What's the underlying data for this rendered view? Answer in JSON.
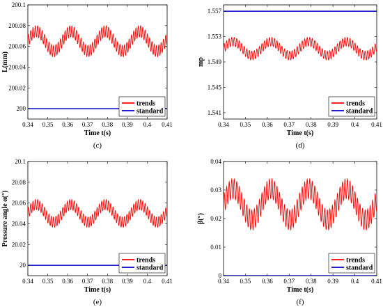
{
  "colors": {
    "trends": "#ff0000",
    "standard": "#0000cc",
    "axis": "#000000"
  },
  "chart_data": [
    {
      "id": "c",
      "type": "line",
      "caption": "(c)",
      "xlabel": "Time t(s)",
      "ylabel": "L(mm)",
      "xlim": [
        0.34,
        0.41
      ],
      "ylim": [
        199.99,
        200.1
      ],
      "xticks": [
        "0.34",
        "0.35",
        "0.36",
        "0.37",
        "0.38",
        "0.39",
        "0.4",
        "0.41"
      ],
      "yticks": [
        "200",
        "200.02",
        "200.04",
        "200.06",
        "200.08",
        "200.1"
      ],
      "legend_position": "bottom-right",
      "series": [
        {
          "name": "trends",
          "kind": "oscillating",
          "mean": 200.065,
          "slow_amp": 0.0095,
          "period": 0.0173,
          "phase_at_start": 0.0,
          "ripple": 0.0055,
          "ripple_period": 0.00115
        },
        {
          "name": "standard",
          "kind": "constant",
          "value": 200.0
        }
      ]
    },
    {
      "id": "d",
      "type": "line",
      "caption": "(d)",
      "xlabel": "Time t(s)",
      "ylabel": "mp",
      "xlim": [
        0.34,
        0.41
      ],
      "ylim": [
        1.54,
        1.558
      ],
      "xticks": [
        "0.34",
        "0.35",
        "0.36",
        "0.37",
        "0.38",
        "0.39",
        "0.4",
        "0.41"
      ],
      "yticks": [
        "1.541",
        "1.545",
        "1.549",
        "1.553",
        "1.557"
      ],
      "legend_position": "bottom-right",
      "series": [
        {
          "name": "trends",
          "kind": "oscillating",
          "mean": 1.5511,
          "slow_amp": 0.0011,
          "period": 0.0173,
          "phase_at_start": 0.0,
          "ripple": 0.0007,
          "ripple_period": 0.00115
        },
        {
          "name": "standard",
          "kind": "constant",
          "value": 1.557
        }
      ]
    },
    {
      "id": "e",
      "type": "line",
      "caption": "(e)",
      "xlabel": "Time t(s)",
      "ylabel": "Pressure angle α(°)",
      "xlim": [
        0.34,
        0.41
      ],
      "ylim": [
        19.99,
        20.1
      ],
      "xticks": [
        "0.34",
        "0.35",
        "0.36",
        "0.37",
        "0.38",
        "0.39",
        "0.4",
        "0.41"
      ],
      "yticks": [
        "20",
        "20.02",
        "20.04",
        "20.06",
        "20.08",
        "20.1"
      ],
      "legend_position": "bottom-right",
      "series": [
        {
          "name": "trends",
          "kind": "oscillating",
          "mean": 20.05,
          "slow_amp": 0.0085,
          "period": 0.0173,
          "phase_at_start": 0.0,
          "ripple": 0.005,
          "ripple_period": 0.00115
        },
        {
          "name": "standard",
          "kind": "constant",
          "value": 20.0
        }
      ]
    },
    {
      "id": "f",
      "type": "line",
      "caption": "(f)",
      "xlabel": "Time t(s)",
      "ylabel": "β(°)",
      "xlim": [
        0.34,
        0.41
      ],
      "ylim": [
        0,
        0.04
      ],
      "xticks": [
        "0.34",
        "0.35",
        "0.36",
        "0.37",
        "0.38",
        "0.39",
        "0.4",
        "0.41"
      ],
      "yticks": [
        "0",
        "0.01",
        "0.02",
        "0.03",
        "0.04"
      ],
      "legend_position": "bottom-right",
      "series": [
        {
          "name": "trends",
          "kind": "oscillating",
          "mean": 0.025,
          "slow_amp": 0.0055,
          "period": 0.0173,
          "phase_at_start": 0.0,
          "ripple": 0.0035,
          "ripple_period": 0.00115
        },
        {
          "name": "standard",
          "kind": "constant",
          "value": 0.0
        }
      ]
    }
  ]
}
